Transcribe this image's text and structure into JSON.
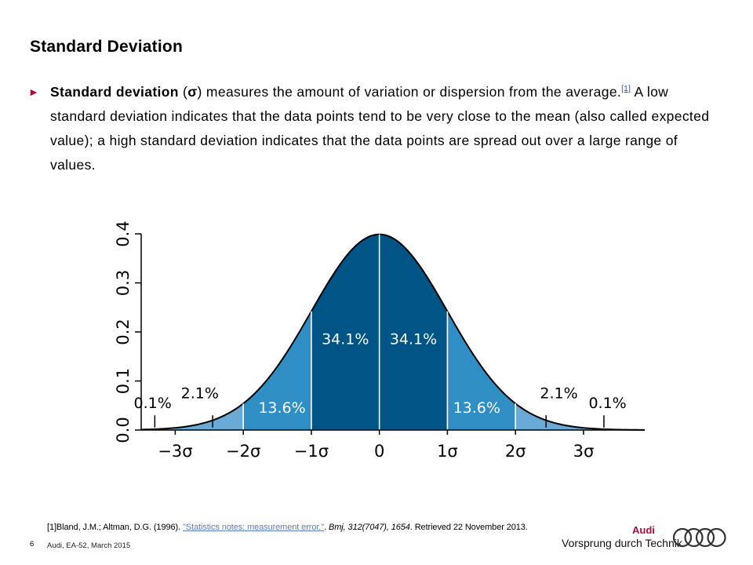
{
  "slide": {
    "title": "Standard Deviation",
    "page_number": "6",
    "footer_text": "Audi, EA-52, March 2015"
  },
  "body": {
    "term": "Standard deviation",
    "symbol_open": " (",
    "symbol": "σ",
    "after_symbol": ") measures the amount of variation or dispersion from the average.",
    "ref_mark": "[1]",
    "rest": " A low standard deviation indicates that the data points tend to be very close to the mean (also called expected value); a high standard deviation indicates that the data points are spread out over a large range of values."
  },
  "footnote": {
    "prefix": "[1]Bland, J.M.; Altman, D.G. (1996). ",
    "link_text": "\"Statistics notes: measurement error.\"",
    "sep": ". ",
    "journal": "Bmj, 312(7047), 1654",
    "suffix": ". Retrieved 22 November 2013."
  },
  "brand": {
    "name": "Audi",
    "slogan": "Vorsprung durch Technik"
  },
  "colors": {
    "bullet": "#b30838",
    "band1": "#005587",
    "band2": "#2f8ec4",
    "band3": "#6aaad6",
    "band4": "#a9cbe6"
  },
  "chart_data": {
    "type": "area",
    "xlabel": "",
    "ylabel": "",
    "xlim": [
      -3.5,
      3.9
    ],
    "ylim": [
      0,
      0.4
    ],
    "x_ticks": [
      -3,
      -2,
      -1,
      0,
      1,
      2,
      3
    ],
    "x_tick_labels": [
      "−3σ",
      "−2σ",
      "−1σ",
      "0",
      "1σ",
      "2σ",
      "3σ"
    ],
    "y_ticks": [
      0,
      0.1,
      0.2,
      0.3,
      0.4
    ],
    "y_tick_labels": [
      "0.0",
      "0.1",
      "0.2",
      "0.3",
      "0.4"
    ],
    "grid": false,
    "distribution": {
      "mean": 0,
      "sd": 1
    },
    "bands": [
      {
        "from": -1,
        "to": 0,
        "label": "34.1%"
      },
      {
        "from": 0,
        "to": 1,
        "label": "34.1%"
      },
      {
        "from": -2,
        "to": -1,
        "label": "13.6%"
      },
      {
        "from": 1,
        "to": 2,
        "label": "13.6%"
      },
      {
        "from": -3,
        "to": -2,
        "label": "2.1%"
      },
      {
        "from": 2,
        "to": 3,
        "label": "2.1%"
      },
      {
        "from": -3.5,
        "to": -3,
        "label": "0.1%"
      },
      {
        "from": 3,
        "to": 3.9,
        "label": "0.1%"
      }
    ]
  }
}
